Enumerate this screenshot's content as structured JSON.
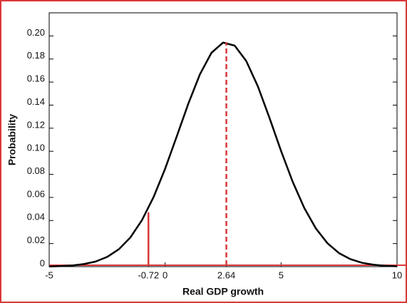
{
  "chart_data": {
    "type": "line",
    "x_label": "Real GDP growth",
    "y_label": "Probability",
    "x": [
      -5,
      -4.5,
      -4,
      -3.5,
      -3,
      -2.5,
      -2,
      -1.5,
      -1,
      -0.5,
      0,
      0.5,
      1,
      1.5,
      2,
      2.5,
      3,
      3.5,
      4,
      4.5,
      5,
      5.5,
      6,
      6.5,
      7,
      7.5,
      8,
      8.5,
      9,
      9.5,
      10
    ],
    "series": [
      {
        "color": "#000000",
        "values": [
          0.0002,
          0.0005,
          0.001,
          0.0022,
          0.0044,
          0.0084,
          0.015,
          0.0253,
          0.0402,
          0.0602,
          0.0849,
          0.1128,
          0.1413,
          0.1667,
          0.1854,
          0.1942,
          0.1916,
          0.1782,
          0.1562,
          0.1289,
          0.1003,
          0.0736,
          0.0508,
          0.0331,
          0.0203,
          0.0117,
          0.0064,
          0.0033,
          0.0016,
          0.0007,
          0.0003
        ]
      }
    ],
    "vlines": [
      {
        "x": 2.64,
        "y": 0.1946,
        "style": "dashed",
        "color": "#d9383a"
      },
      {
        "x": -0.72,
        "y": 0.047,
        "style": "solid",
        "color": "#d9383a"
      }
    ],
    "xlim": [
      -5,
      10
    ],
    "xticks": [
      -5,
      -0.72,
      0,
      2.64,
      5,
      10
    ],
    "ylim": [
      0,
      0.22
    ],
    "yticks": [
      0,
      0.02,
      0.04,
      0.06,
      0.08,
      {
        "value": 0.1,
        "label": "0.10"
      },
      0.12,
      0.14,
      0.16,
      0.18,
      {
        "value": 0.2,
        "label": "0.20"
      }
    ],
    "axis_color": "#d9383a",
    "border_color": "#d9383a"
  }
}
